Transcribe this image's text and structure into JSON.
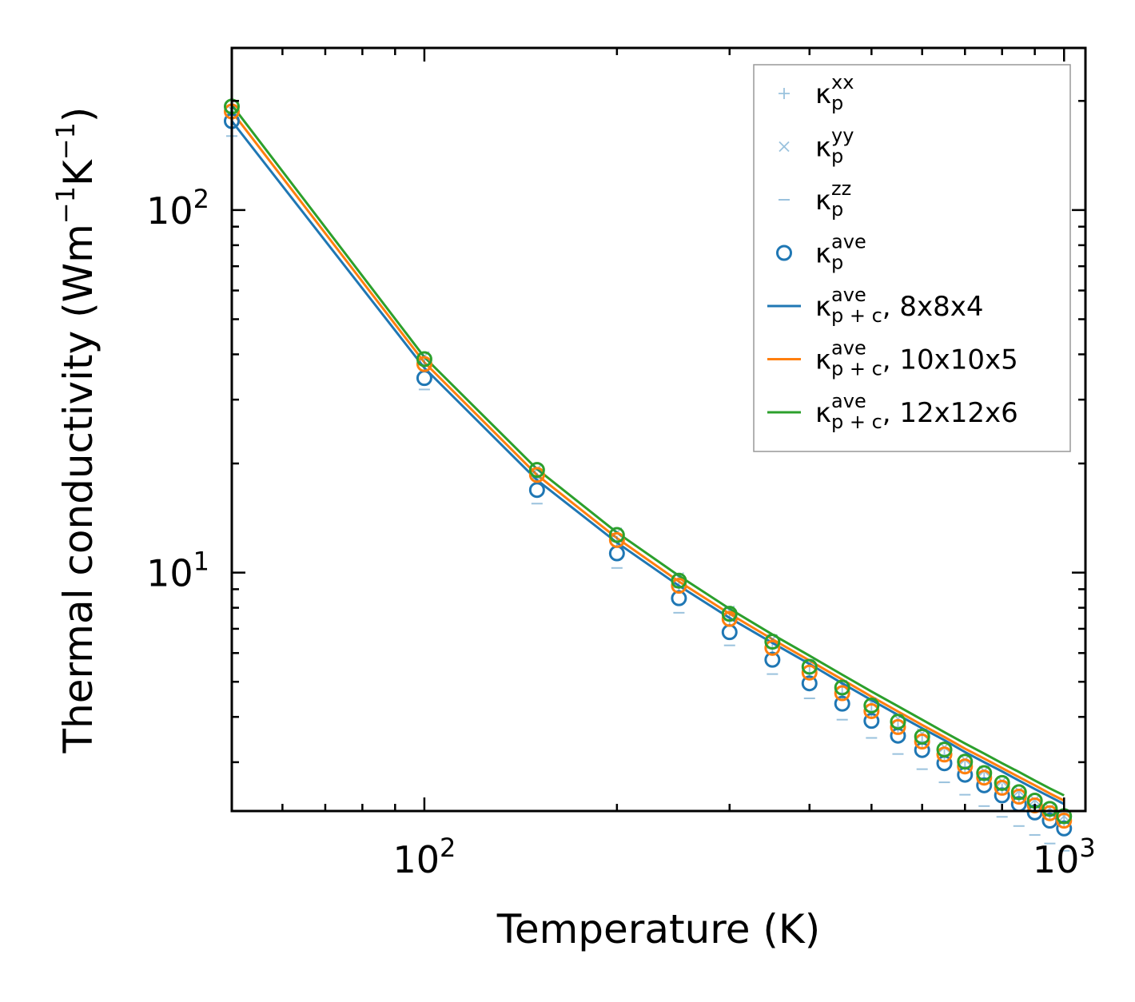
{
  "chart_data": {
    "type": "line",
    "scale": {
      "x": "log",
      "y": "log"
    },
    "xlabel": "Temperature (K)",
    "ylabel": {
      "base": "Thermal conductivity (Wm",
      "sup1": "−1",
      "mid": "K",
      "sup2": "−1",
      "end": ")"
    },
    "xlim": [
      50,
      1080
    ],
    "ylim": [
      2.2,
      280
    ],
    "x_ticks": [
      {
        "value": 100,
        "base": "10",
        "exp": "2"
      },
      {
        "value": 1000,
        "base": "10",
        "exp": "3"
      }
    ],
    "y_ticks": [
      {
        "value": 10,
        "base": "10",
        "exp": "1"
      },
      {
        "value": 100,
        "base": "10",
        "exp": "2"
      }
    ],
    "x": [
      50,
      100,
      150,
      200,
      250,
      300,
      350,
      400,
      450,
      500,
      550,
      600,
      650,
      700,
      750,
      800,
      850,
      900,
      950,
      1000
    ],
    "series": [
      {
        "name": "κ_p^xx",
        "kind": "marker-plus",
        "color": "#1f77b4",
        "alpha": 0.45,
        "values": [
          180,
          37.5,
          18.2,
          12.2,
          9.1,
          7.4,
          6.2,
          5.3,
          4.65,
          4.15,
          3.75,
          3.42,
          3.14,
          2.91,
          2.71,
          2.53,
          2.39,
          2.26,
          2.15,
          2.04
        ]
      },
      {
        "name": "κ_p^yy",
        "kind": "marker-x",
        "color": "#1f77b4",
        "alpha": 0.45,
        "values": [
          189,
          39.5,
          19.3,
          12.9,
          9.7,
          7.85,
          6.55,
          5.6,
          4.9,
          4.38,
          3.95,
          3.6,
          3.3,
          3.05,
          2.84,
          2.66,
          2.5,
          2.36,
          2.24,
          2.13
        ]
      },
      {
        "name": "κ_p^zz",
        "kind": "marker-dash",
        "color": "#1f77b4",
        "alpha": 0.45,
        "values": [
          160,
          32,
          15.5,
          10.3,
          7.75,
          6.3,
          5.25,
          4.5,
          3.93,
          3.5,
          3.16,
          2.87,
          2.64,
          2.44,
          2.27,
          2.12,
          2.0,
          1.89,
          1.79,
          1.71
        ]
      },
      {
        "name": "κ_p^ave",
        "kind": "marker-circle",
        "color": "#1f77b4",
        "values": [
          176,
          34.4,
          16.9,
          11.3,
          8.5,
          6.85,
          5.75,
          4.95,
          4.35,
          3.9,
          3.55,
          3.24,
          2.98,
          2.77,
          2.59,
          2.43,
          2.3,
          2.18,
          2.07,
          1.97
        ]
      },
      {
        "name": "κ_p^ave (10x10x5)",
        "kind": "marker-circle",
        "color": "#ff7f0e",
        "legend": false,
        "values": [
          187,
          37.6,
          18.6,
          12.3,
          9.2,
          7.45,
          6.2,
          5.3,
          4.65,
          4.15,
          3.75,
          3.42,
          3.15,
          2.92,
          2.72,
          2.55,
          2.41,
          2.28,
          2.17,
          2.07
        ]
      },
      {
        "name": "κ_p^ave (12x12x6)",
        "kind": "marker-circle",
        "color": "#2ca02c",
        "legend": false,
        "values": [
          193,
          38.8,
          19.2,
          12.7,
          9.5,
          7.7,
          6.45,
          5.5,
          4.82,
          4.3,
          3.88,
          3.53,
          3.25,
          3.01,
          2.8,
          2.63,
          2.48,
          2.35,
          2.23,
          2.13
        ]
      },
      {
        "name": "κ_p+c^ave, 8x8x4",
        "kind": "line",
        "color": "#1f77b4",
        "values": [
          176,
          36.7,
          18.0,
          12.1,
          9.2,
          7.5,
          6.4,
          5.6,
          4.95,
          4.45,
          4.05,
          3.72,
          3.45,
          3.2,
          3.0,
          2.83,
          2.67,
          2.53,
          2.41,
          2.3
        ]
      },
      {
        "name": "κ_p+c^ave, 10x10x5",
        "kind": "line",
        "color": "#ff7f0e",
        "values": [
          187,
          38.0,
          18.6,
          12.45,
          9.45,
          7.7,
          6.55,
          5.72,
          5.07,
          4.55,
          4.14,
          3.8,
          3.52,
          3.27,
          3.07,
          2.89,
          2.73,
          2.59,
          2.46,
          2.35
        ]
      },
      {
        "name": "κ_p+c^ave, 12x12x6",
        "kind": "line",
        "color": "#2ca02c",
        "values": [
          195,
          39.3,
          19.3,
          12.9,
          9.8,
          7.95,
          6.75,
          5.9,
          5.23,
          4.7,
          4.28,
          3.93,
          3.63,
          3.38,
          3.17,
          2.98,
          2.82,
          2.67,
          2.54,
          2.43
        ]
      }
    ],
    "legend": {
      "position": "top-right",
      "entries": [
        {
          "sym": "+",
          "kind": "marker-plus",
          "color": "#1f77b4",
          "sup": "xx",
          "sub": "p",
          "suffix": ""
        },
        {
          "sym": "×",
          "kind": "marker-x",
          "color": "#1f77b4",
          "sup": "yy",
          "sub": "p",
          "suffix": ""
        },
        {
          "sym": "−",
          "kind": "marker-dash",
          "color": "#1f77b4",
          "sup": "zz",
          "sub": "p",
          "suffix": ""
        },
        {
          "sym": "o",
          "kind": "marker-circle",
          "color": "#1f77b4",
          "sup": "ave",
          "sub": "p",
          "suffix": ""
        },
        {
          "sym": "line",
          "kind": "line",
          "color": "#1f77b4",
          "sup": "ave",
          "sub": "p + c",
          "suffix": ", 8x8x4"
        },
        {
          "sym": "line",
          "kind": "line",
          "color": "#ff7f0e",
          "sup": "ave",
          "sub": "p + c",
          "suffix": ", 10x10x5"
        },
        {
          "sym": "line",
          "kind": "line",
          "color": "#2ca02c",
          "sup": "ave",
          "sub": "p + c",
          "suffix": ", 12x12x6"
        }
      ]
    }
  }
}
